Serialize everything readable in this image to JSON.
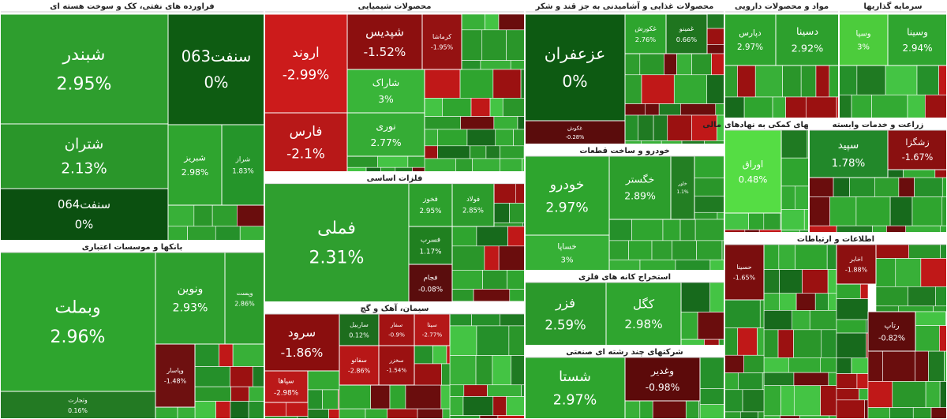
{
  "chart_data": {
    "type": "treemap",
    "sectors": [
      {
        "title": "فراورده های نفتی، کک و سوخت هسته ای",
        "tiles": [
          {
            "name": "شبندر",
            "change": "2.95%",
            "color": "#2e9e2e"
          },
          {
            "name": "سنفت063",
            "change": "0%",
            "color": "#0e5c12"
          },
          {
            "name": "شتران",
            "change": "2.13%",
            "color": "#2a962a"
          },
          {
            "name": "سنفت064",
            "change": "0%",
            "color": "#0b5010"
          },
          {
            "name": "شبریز",
            "change": "2.98%",
            "color": "#2fa52f"
          },
          {
            "name": "شراز",
            "change": "1.83%",
            "color": "#25952a"
          }
        ]
      },
      {
        "title": "بانکها و موسسات اعتباری",
        "tiles": [
          {
            "name": "وبملت",
            "change": "2.96%",
            "color": "#2ea52e"
          },
          {
            "name": "ونوین",
            "change": "2.93%",
            "color": "#2ea02e"
          },
          {
            "name": "وپست",
            "change": "2.86%",
            "color": "#2c9c2c"
          },
          {
            "name": "وپاسار",
            "change": "-1.48%",
            "color": "#6e1010"
          },
          {
            "name": "وتجارت",
            "change": "0.16%",
            "color": "#237a23"
          }
        ]
      },
      {
        "title": "محصولات شیمیایی",
        "tiles": [
          {
            "name": "اروند",
            "change": "-2.99%",
            "color": "#cc1b1b"
          },
          {
            "name": "فارس",
            "change": "-2.1%",
            "color": "#b81818"
          },
          {
            "name": "شپدیس",
            "change": "-1.52%",
            "color": "#8c0f0f"
          },
          {
            "name": "کرماشا",
            "change": "-1.95%",
            "color": "#951212"
          },
          {
            "name": "شاراک",
            "change": "3%",
            "color": "#39b539"
          },
          {
            "name": "نوری",
            "change": "2.77%",
            "color": "#35ac35"
          }
        ]
      },
      {
        "title": "فلزات اساسی",
        "tiles": [
          {
            "name": "فملی",
            "change": "2.31%",
            "color": "#2f9f2f"
          },
          {
            "name": "فخوز",
            "change": "2.95%",
            "color": "#2da02d"
          },
          {
            "name": "فولاد",
            "change": "2.85%",
            "color": "#2c9c2c"
          },
          {
            "name": "فسرب",
            "change": "1.17%",
            "color": "#208020"
          },
          {
            "name": "فجام",
            "change": "-0.08%",
            "color": "#5a0d0d"
          }
        ]
      },
      {
        "title": "سیمان، آهک و گچ",
        "tiles": [
          {
            "name": "سرود",
            "change": "-1.86%",
            "color": "#8a0e0e"
          },
          {
            "name": "ساربیل",
            "change": "0.12%",
            "color": "#1d6d1d"
          },
          {
            "name": "سفار",
            "change": "-0.9%",
            "color": "#a31313"
          },
          {
            "name": "سیتا",
            "change": "-2.77%",
            "color": "#b51818"
          },
          {
            "name": "سپاها",
            "change": "-2.98%",
            "color": "#bb1919"
          },
          {
            "name": "سفانو",
            "change": "-2.86%",
            "color": "#b71717"
          },
          {
            "name": "سخزر",
            "change": "-1.54%",
            "color": "#9b1111"
          }
        ]
      },
      {
        "title": "محصولات غذایی و آشامیدنی به جز قند و شکر",
        "tiles": [
          {
            "name": "عزعفران",
            "change": "0%",
            "color": "#0d5a12"
          },
          {
            "name": "غکورش",
            "change": "2.76%",
            "color": "#2ea52e"
          },
          {
            "name": "غمینو",
            "change": "0.66%",
            "color": "#1f751f"
          },
          {
            "name": "غکوش",
            "change": "-0.28%",
            "color": "#5a0c0c"
          }
        ]
      },
      {
        "title": "خودرو و ساخت قطعات",
        "tiles": [
          {
            "name": "خودرو",
            "change": "2.97%",
            "color": "#2ea52e"
          },
          {
            "name": "خگستر",
            "change": "2.89%",
            "color": "#2c9e2c"
          },
          {
            "name": "خاور",
            "change": "1.1%",
            "color": "#237f23"
          },
          {
            "name": "خساپا",
            "change": "3%",
            "color": "#36b036"
          }
        ]
      },
      {
        "title": "استخراج کانه های فلزی",
        "tiles": [
          {
            "name": "فزر",
            "change": "2.59%",
            "color": "#2b992b"
          },
          {
            "name": "کگل",
            "change": "2.98%",
            "color": "#2fa52f"
          }
        ]
      },
      {
        "title": "شرکتهای چند رشته ای صنعتی",
        "tiles": [
          {
            "name": "شستا",
            "change": "2.97%",
            "color": "#2ea52e"
          },
          {
            "name": "وغدیر",
            "change": "-0.98%",
            "color": "#5c0a0a"
          }
        ]
      },
      {
        "title": "مواد و محصولات دارویی",
        "tiles": [
          {
            "name": "دپارس",
            "change": "2.97%",
            "color": "#2ea52e"
          },
          {
            "name": "دسینا",
            "change": "2.92%",
            "color": "#2da02d"
          }
        ]
      },
      {
        "title": "سرمایه گذاریها",
        "tiles": [
          {
            "name": "وسپا",
            "change": "3%",
            "color": "#4ccc3c"
          },
          {
            "name": "وسینا",
            "change": "2.94%",
            "color": "#2fa52f"
          }
        ]
      },
      {
        "title": "فعالیتهای کمکی به نهادهای مالی",
        "tiles": [
          {
            "name": "اوراق",
            "change": "0.48%",
            "color": "#55dd44"
          }
        ]
      },
      {
        "title": "زراعت و خدمات وابسته",
        "tiles": [
          {
            "name": "سپید",
            "change": "1.78%",
            "color": "#22882a"
          },
          {
            "name": "زشگزا",
            "change": "-1.67%",
            "color": "#8a1010"
          }
        ]
      },
      {
        "title": "اطلاعات و ارتباطات",
        "tiles": [
          {
            "name": "حسینا",
            "change": "-1.65%",
            "color": "#7a0e0e"
          },
          {
            "name": "اخابر",
            "change": "-1.88%",
            "color": "#8c1010"
          },
          {
            "name": "رتاپ",
            "change": "-0.82%",
            "color": "#5e0c0c"
          }
        ]
      }
    ]
  }
}
